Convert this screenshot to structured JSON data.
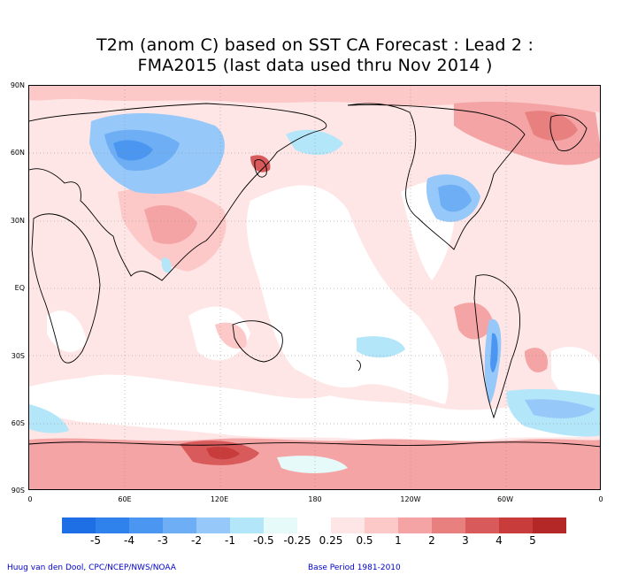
{
  "title": {
    "line1": "T2m (anom C) based on SST CA Forecast : Lead 2 :",
    "line2": "FMA2015 (last data used thru Nov 2014 )"
  },
  "map": {
    "lat_labels": [
      "90N",
      "60N",
      "30N",
      "EQ",
      "30S",
      "60S",
      "90S"
    ],
    "lon_labels": [
      "0",
      "60E",
      "120E",
      "180",
      "120W",
      "60W",
      "0"
    ],
    "projection": "cylindrical equidistant, 0 to 360 longitude"
  },
  "legend": {
    "labels": [
      "-5",
      "-4",
      "-3",
      "-2",
      "-1",
      "-0.5",
      "-0.25",
      "0.25",
      "0.5",
      "1",
      "2",
      "3",
      "4",
      "5"
    ],
    "colors": [
      "#1e6ee6",
      "#2f82ec",
      "#4b96f0",
      "#6eaef5",
      "#96c8fa",
      "#b4e6fa",
      "#e6fafa",
      "#ffffff",
      "#ffe6e6",
      "#fcc8c8",
      "#f4a4a4",
      "#e88080",
      "#d85a5a",
      "#c83c3c",
      "#b42828"
    ]
  },
  "credits": {
    "left": "Huug van den Dool, CPC/NCEP/NWS/NOAA",
    "right": "Base Period 1981-2010"
  }
}
